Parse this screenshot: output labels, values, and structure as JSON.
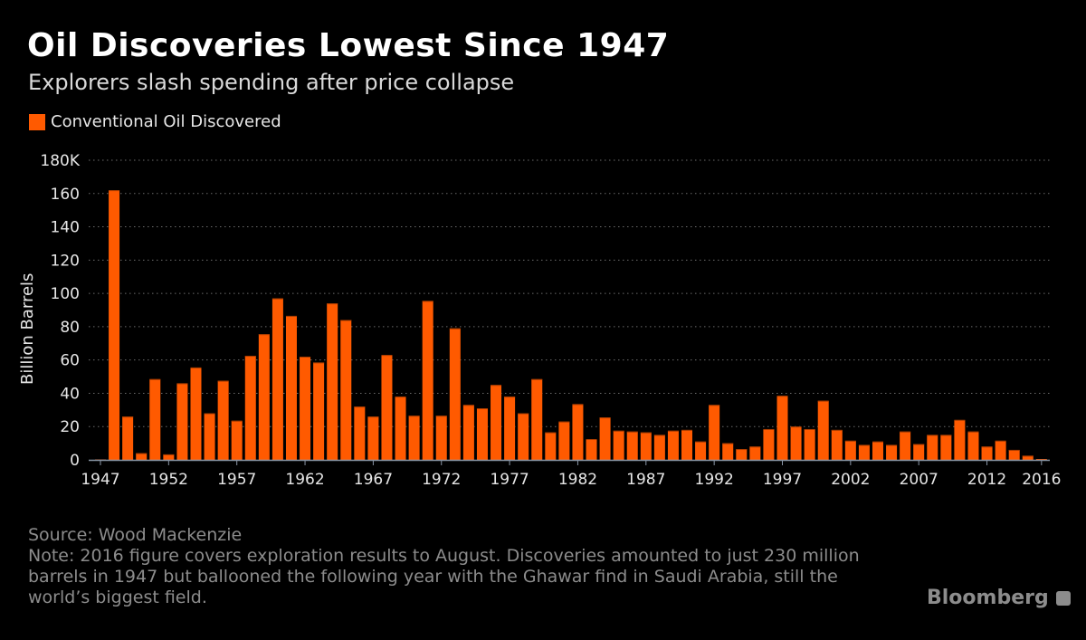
{
  "header": {
    "title": "Oil Discoveries Lowest Since 1947",
    "subtitle": "Explorers slash spending after price collapse"
  },
  "footer": {
    "source": "Source: Wood Mackenzie",
    "note": "Note: 2016 figure covers exploration results to August. Discoveries amounted to just 230 million barrels in 1947 but ballooned the following year with the Ghawar find in Saudi Arabia, still the world’s biggest field.",
    "logo": "Bloomberg"
  },
  "colors": {
    "bar": "#ff5a00",
    "background": "#000000",
    "grid": "#666666"
  },
  "chart_data": {
    "type": "bar",
    "title": "Oil Discoveries Lowest Since 1947",
    "subtitle": "Explorers slash spending after price collapse",
    "ylabel": "Billion Barrels",
    "xlabel": "",
    "ylim": [
      0,
      180
    ],
    "yticks": [
      "0",
      "20",
      "40",
      "60",
      "80",
      "100",
      "120",
      "140",
      "160",
      "180K"
    ],
    "xticks": [
      "1947",
      "1952",
      "1957",
      "1962",
      "1967",
      "1972",
      "1977",
      "1982",
      "1987",
      "1992",
      "1997",
      "2002",
      "2007",
      "2012",
      "2016"
    ],
    "grid": true,
    "legend_position": "top-left",
    "series": [
      {
        "name": "Conventional Oil Discovered",
        "color": "#ff5a00",
        "x": [
          1947,
          1948,
          1949,
          1950,
          1951,
          1952,
          1953,
          1954,
          1955,
          1956,
          1957,
          1958,
          1959,
          1960,
          1961,
          1962,
          1963,
          1964,
          1965,
          1966,
          1967,
          1968,
          1969,
          1970,
          1971,
          1972,
          1973,
          1974,
          1975,
          1976,
          1977,
          1978,
          1979,
          1980,
          1981,
          1982,
          1983,
          1984,
          1985,
          1986,
          1987,
          1988,
          1989,
          1990,
          1991,
          1992,
          1993,
          1994,
          1995,
          1996,
          1997,
          1998,
          1999,
          2000,
          2001,
          2002,
          2003,
          2004,
          2005,
          2006,
          2007,
          2008,
          2009,
          2010,
          2011,
          2012,
          2013,
          2014,
          2015,
          2016
        ],
        "values": [
          0.23,
          162,
          26,
          4,
          48.5,
          3.3,
          46,
          55.5,
          28,
          47.5,
          23.5,
          62.5,
          75.5,
          97,
          86.5,
          62,
          58.5,
          94,
          84,
          32,
          26,
          63,
          38,
          26.5,
          95.5,
          26.5,
          79,
          33,
          31,
          45,
          38,
          28,
          48.5,
          16.5,
          23,
          33.5,
          12.5,
          25.5,
          17.5,
          17,
          16.5,
          15,
          17.5,
          18,
          11,
          33,
          10,
          6.5,
          8,
          18.5,
          38.5,
          20,
          18.5,
          35.5,
          18,
          11.5,
          9,
          11,
          9,
          17,
          9.5,
          15,
          15,
          24,
          17,
          8,
          11.5,
          6,
          2.5,
          0.5
        ]
      }
    ]
  }
}
